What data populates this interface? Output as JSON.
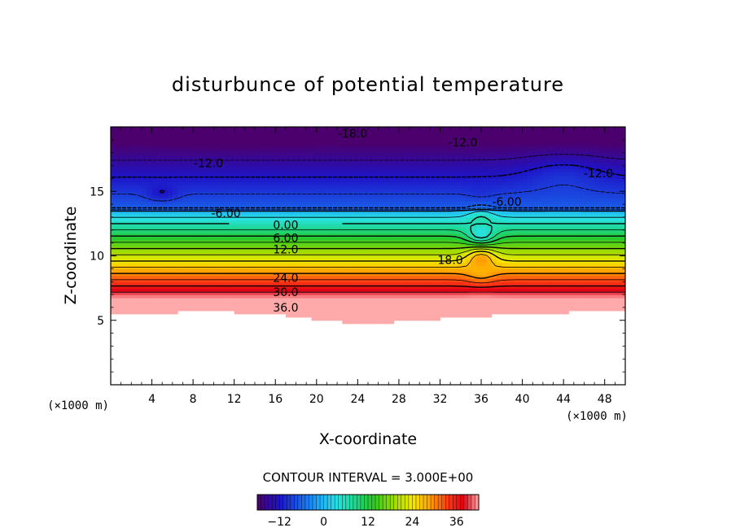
{
  "chart_data": {
    "type": "contour",
    "title": "disturbunce of potential temperature",
    "xlabel": "X-coordinate",
    "ylabel": "Z-coordinate",
    "x_unit": "(×1000 m)",
    "y_unit": "(×1000 m)",
    "xlim": [
      0,
      50
    ],
    "ylim": [
      0,
      20
    ],
    "x_ticks": [
      4,
      8,
      12,
      16,
      20,
      24,
      28,
      32,
      36,
      40,
      44,
      48
    ],
    "x_tick_labels": [
      "4",
      "8",
      "12",
      "16",
      "20",
      "24",
      "28",
      "32",
      "36",
      "40",
      "44",
      "48"
    ],
    "y_ticks": [
      5,
      10,
      15
    ],
    "y_tick_labels": [
      "5",
      "10",
      "15"
    ],
    "contour_interval_text": "CONTOUR INTERVAL = 3.000E+00",
    "contour_interval": 3.0,
    "value_range": [
      -18,
      42
    ],
    "contour_labels": [
      {
        "text": "-18.0",
        "x": 23.5,
        "z": 19.5
      },
      {
        "text": "-12.0",
        "x": 34.2,
        "z": 18.8
      },
      {
        "text": "-12.0",
        "x": 9.5,
        "z": 17.2
      },
      {
        "text": "-12.0",
        "x": 47.4,
        "z": 16.4
      },
      {
        "text": "-6.00",
        "x": 38.5,
        "z": 14.2
      },
      {
        "text": "-6.00",
        "x": 11.2,
        "z": 13.3
      },
      {
        "text": "0.00",
        "x": 17.0,
        "z": 12.4
      },
      {
        "text": "6.00",
        "x": 17.0,
        "z": 11.4
      },
      {
        "text": "12.0",
        "x": 17.0,
        "z": 10.5
      },
      {
        "text": "18.0",
        "x": 33.0,
        "z": 9.7
      },
      {
        "text": "24.0",
        "x": 17.0,
        "z": 8.3
      },
      {
        "text": "30.0",
        "x": 17.0,
        "z": 7.2
      },
      {
        "text": "36.0",
        "x": 17.0,
        "z": 6.0
      }
    ],
    "colorbar": {
      "min": -18,
      "max": 42,
      "ticks": [
        -12,
        0,
        12,
        24,
        36
      ],
      "tick_labels": [
        "−12",
        "0",
        "12",
        "24",
        "36"
      ]
    }
  }
}
